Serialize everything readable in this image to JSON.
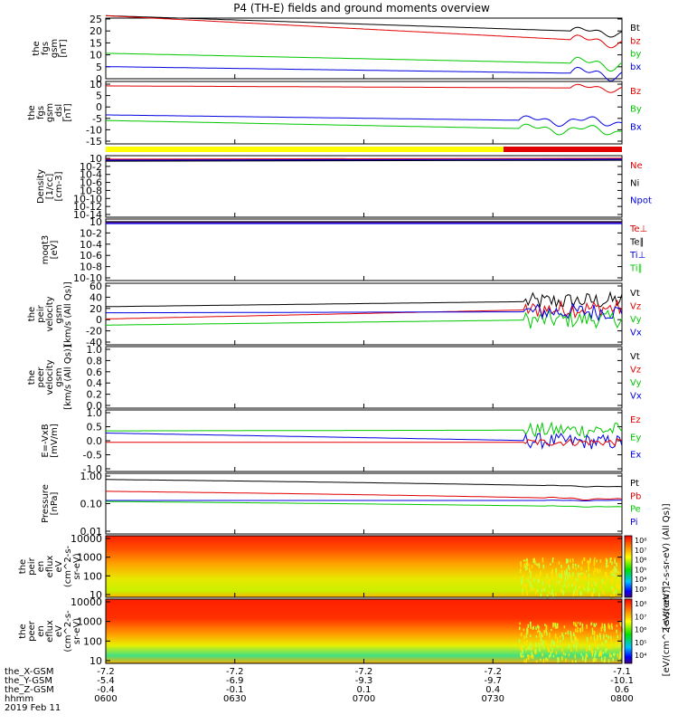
{
  "title": "P4 (TH-E) fields and ground moments overview",
  "colors": {
    "black": "#000000",
    "red": "#e00000",
    "green": "#00c800",
    "blue": "#0000e0",
    "purple": "#8a1ac8",
    "yellow": "#ffff00"
  },
  "chart_data": [
    {
      "type": "line",
      "ylabel": [
        "the",
        "fgs",
        "gsm",
        "[nT]"
      ],
      "ylim": [
        0,
        25
      ],
      "yticks": [
        "0",
        "5",
        "10",
        "15",
        "20",
        "25"
      ],
      "legend": [
        {
          "name": "Bt",
          "color": "black"
        },
        {
          "name": "bz",
          "color": "red"
        },
        {
          "name": "by",
          "color": "green"
        },
        {
          "name": "bx",
          "color": "blue"
        }
      ]
    },
    {
      "type": "line",
      "ylabel": [
        "the",
        "fgs",
        "gsm",
        "_dsl",
        "[nT]"
      ],
      "ylim": [
        -18,
        10
      ],
      "yticks": [
        "10",
        "5",
        "0",
        "-5",
        "-10",
        "-15"
      ],
      "legend": [
        {
          "name": "Bz",
          "color": "red"
        },
        {
          "name": "By",
          "color": "green"
        },
        {
          "name": "Bx",
          "color": "blue"
        }
      ]
    },
    {
      "type": "line",
      "ylabel": [
        "Density",
        "[1/cc]",
        "[cm-3]"
      ],
      "yscale": "log",
      "yticks": [
        "10",
        "10-2",
        "10-4",
        "10-6",
        "10-8",
        "10-10",
        "10-12",
        "10-14"
      ],
      "legend": [
        {
          "name": "Ne",
          "color": "red"
        },
        {
          "name": "Ni",
          "color": "black"
        },
        {
          "name": "Npot",
          "color": "blue"
        }
      ]
    },
    {
      "type": "line",
      "ylabel": [
        "moqt3",
        "[eV]"
      ],
      "yscale": "log",
      "yticks": [
        "10",
        "10-2",
        "10-4",
        "10-6",
        "10-8",
        "10-10"
      ],
      "legend": [
        {
          "name": "Te⊥",
          "color": "red"
        },
        {
          "name": "Te∥",
          "color": "black"
        },
        {
          "name": "Ti⊥",
          "color": "blue"
        },
        {
          "name": "Ti∥",
          "color": "green"
        }
      ]
    },
    {
      "type": "line",
      "ylabel": [
        "the",
        "peir",
        "velocity",
        "gsm",
        "[km/s (All Qs)]"
      ],
      "ylim": [
        -40,
        60
      ],
      "yticks": [
        "60",
        "40",
        "20",
        "0",
        "-20",
        "-40"
      ],
      "legend": [
        {
          "name": "Vt",
          "color": "black"
        },
        {
          "name": "Vz",
          "color": "red"
        },
        {
          "name": "Vy",
          "color": "green"
        },
        {
          "name": "Vx",
          "color": "blue"
        }
      ]
    },
    {
      "type": "line",
      "ylabel": [
        "the",
        "peer",
        "velocity",
        "gsm",
        "[km/s (All Qs)]"
      ],
      "ylim": [
        0,
        1
      ],
      "yticks": [
        "1.0",
        "0.8",
        "0.6",
        "0.4",
        "0.2",
        "0.0"
      ],
      "legend": [
        {
          "name": "Vt",
          "color": "black"
        },
        {
          "name": "Vz",
          "color": "red"
        },
        {
          "name": "Vy",
          "color": "green"
        },
        {
          "name": "Vx",
          "color": "blue"
        }
      ]
    },
    {
      "type": "line",
      "ylabel": [
        "E=-VxB",
        "[mV/m]"
      ],
      "ylim": [
        -1,
        1
      ],
      "yticks": [
        "1.0",
        "0.5",
        "0.0",
        "-0.5",
        "-1.0"
      ],
      "legend": [
        {
          "name": "Ez",
          "color": "red"
        },
        {
          "name": "Ey",
          "color": "green"
        },
        {
          "name": "Ex",
          "color": "blue"
        }
      ]
    },
    {
      "type": "line",
      "ylabel": [
        "Pressure",
        "[nPa]"
      ],
      "yscale": "log",
      "ylim": [
        0.01,
        1
      ],
      "yticks": [
        "1.00",
        "0.10",
        "0.01"
      ],
      "legend": [
        {
          "name": "Pt",
          "color": "black"
        },
        {
          "name": "Pb",
          "color": "red"
        },
        {
          "name": "Pe",
          "color": "green"
        },
        {
          "name": "Pi",
          "color": "blue"
        }
      ]
    },
    {
      "type": "heatmap",
      "ylabel": [
        "the",
        "peir",
        "en",
        "eflux",
        "eV",
        "(cm^2-s-",
        "sr-eV)"
      ],
      "yscale": "log",
      "yticks": [
        "10000",
        "1000",
        "100",
        "10"
      ],
      "colorbar_label": "[eV/(cm^2-s-sr-eV) (All Qs)]",
      "colorbar_ticks": [
        "10⁸",
        "10⁷",
        "10⁶",
        "10⁵",
        "10⁴",
        "10³"
      ]
    },
    {
      "type": "heatmap",
      "ylabel": [
        "the",
        "peer",
        "en",
        "eflux",
        "eV",
        "(cm^2-s-",
        "sr-eV)"
      ],
      "yscale": "log",
      "yticks": [
        "10000",
        "1000",
        "100",
        "10"
      ],
      "colorbar_label": "[eV/(cm^2-s-sr-eV)]",
      "colorbar_ticks": [
        "10⁸",
        "10⁷",
        "10⁶",
        "10⁵",
        "10⁴"
      ]
    }
  ],
  "xaxis": {
    "rows": [
      {
        "label": "the_X-GSM",
        "values": [
          "-7.2",
          "-7.2",
          "-7.2",
          "-7.2",
          "-7.1"
        ]
      },
      {
        "label": "the_Y-GSM",
        "values": [
          "-5.4",
          "-6.9",
          "-9.3",
          "-9.7",
          "-10.1"
        ]
      },
      {
        "label": "the_Z-GSM",
        "values": [
          "-0.4",
          "-0.1",
          "0.1",
          "0.4",
          "0.6"
        ]
      },
      {
        "label": "hhmm",
        "values": [
          "0600",
          "0630",
          "0700",
          "0730",
          "0800"
        ]
      }
    ],
    "date": "2019 Feb 11"
  }
}
